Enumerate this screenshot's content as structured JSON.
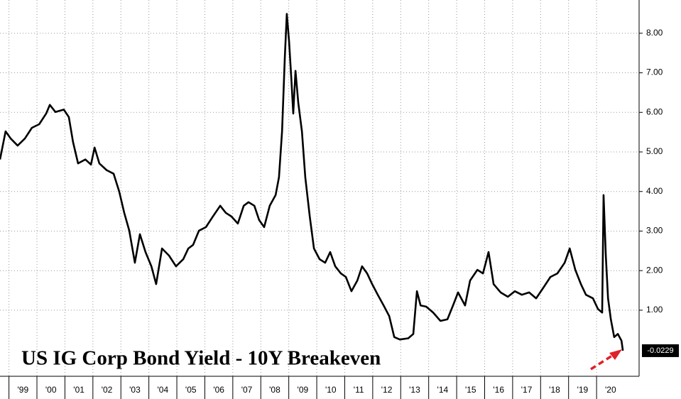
{
  "chart_data": {
    "type": "line",
    "title": "US IG Corp Bond Yield - 10Y Breakeven",
    "color": "#000000",
    "x": [
      1998.68,
      1998.88,
      1999.06,
      1999.31,
      1999.57,
      1999.82,
      2000.08,
      2000.33,
      2000.46,
      2000.66,
      2000.96,
      2001.14,
      2001.29,
      2001.47,
      2001.73,
      2001.93,
      2002.06,
      2002.23,
      2002.49,
      2002.74,
      2002.94,
      2003.12,
      2003.3,
      2003.5,
      2003.68,
      2003.88,
      2004.09,
      2004.26,
      2004.47,
      2004.72,
      2004.97,
      2005.23,
      2005.41,
      2005.58,
      2005.79,
      2006.04,
      2006.29,
      2006.55,
      2006.75,
      2006.95,
      2007.18,
      2007.39,
      2007.56,
      2007.77,
      2007.94,
      2008.12,
      2008.32,
      2008.53,
      2008.65,
      2008.76,
      2008.86,
      2008.93,
      2009.01,
      2009.09,
      2009.16,
      2009.24,
      2009.34,
      2009.47,
      2009.59,
      2009.75,
      2009.9,
      2010.1,
      2010.3,
      2010.48,
      2010.66,
      2010.86,
      2011.04,
      2011.24,
      2011.45,
      2011.62,
      2011.8,
      2011.98,
      2012.18,
      2012.39,
      2012.59,
      2012.77,
      2012.97,
      2013.27,
      2013.45,
      2013.58,
      2013.71,
      2013.91,
      2014.16,
      2014.42,
      2014.67,
      2014.87,
      2015.05,
      2015.3,
      2015.48,
      2015.74,
      2015.94,
      2016.14,
      2016.32,
      2016.57,
      2016.83,
      2017.08,
      2017.33,
      2017.59,
      2017.84,
      2018.1,
      2018.35,
      2018.6,
      2018.86,
      2019.04,
      2019.24,
      2019.44,
      2019.62,
      2019.87,
      2020.05,
      2020.2,
      2020.25,
      2020.33,
      2020.41,
      2020.51,
      2020.63,
      2020.76,
      2020.89,
      2020.94
    ],
    "values": [
      4.81,
      5.52,
      5.34,
      5.16,
      5.34,
      5.61,
      5.7,
      5.97,
      6.19,
      6.01,
      6.07,
      5.88,
      5.25,
      4.71,
      4.81,
      4.68,
      5.11,
      4.71,
      4.54,
      4.45,
      4.0,
      3.46,
      3.01,
      2.2,
      2.92,
      2.47,
      2.11,
      1.66,
      2.56,
      2.38,
      2.11,
      2.29,
      2.56,
      2.65,
      3.01,
      3.1,
      3.37,
      3.64,
      3.46,
      3.37,
      3.19,
      3.64,
      3.73,
      3.64,
      3.28,
      3.1,
      3.64,
      3.91,
      4.36,
      5.52,
      7.41,
      8.49,
      7.8,
      6.87,
      5.97,
      7.05,
      6.24,
      5.52,
      4.36,
      3.37,
      2.56,
      2.29,
      2.2,
      2.47,
      2.11,
      1.93,
      1.84,
      1.48,
      1.75,
      2.11,
      1.93,
      1.66,
      1.39,
      1.12,
      0.85,
      0.32,
      0.26,
      0.29,
      0.4,
      1.48,
      1.12,
      1.09,
      0.94,
      0.73,
      0.77,
      1.12,
      1.45,
      1.12,
      1.75,
      2.02,
      1.93,
      2.47,
      1.66,
      1.45,
      1.34,
      1.48,
      1.39,
      1.45,
      1.3,
      1.57,
      1.84,
      1.93,
      2.2,
      2.56,
      2.02,
      1.66,
      1.39,
      1.3,
      1.03,
      0.94,
      3.91,
      2.38,
      1.3,
      0.77,
      0.32,
      0.4,
      0.23,
      -0.0229
    ],
    "xlim": [
      1998.68,
      2021.52
    ],
    "xticks": [
      {
        "value": 1999,
        "label": "'99"
      },
      {
        "value": 2000,
        "label": "'00"
      },
      {
        "value": 2001,
        "label": "'01"
      },
      {
        "value": 2002,
        "label": "'02"
      },
      {
        "value": 2003,
        "label": "'03"
      },
      {
        "value": 2004,
        "label": "'04"
      },
      {
        "value": 2005,
        "label": "'05"
      },
      {
        "value": 2006,
        "label": "'06"
      },
      {
        "value": 2007,
        "label": "'07"
      },
      {
        "value": 2008,
        "label": "'08"
      },
      {
        "value": 2009,
        "label": "'09"
      },
      {
        "value": 2010,
        "label": "'10"
      },
      {
        "value": 2011,
        "label": "'11"
      },
      {
        "value": 2012,
        "label": "'12"
      },
      {
        "value": 2013,
        "label": "'13"
      },
      {
        "value": 2014,
        "label": "'14"
      },
      {
        "value": 2015,
        "label": "'15"
      },
      {
        "value": 2016,
        "label": "'16"
      },
      {
        "value": 2017,
        "label": "'17"
      },
      {
        "value": 2018,
        "label": "'18"
      },
      {
        "value": 2019,
        "label": "'19"
      },
      {
        "value": 2020,
        "label": "'20"
      }
    ],
    "ylim": [
      -0.67,
      8.84
    ],
    "yticks": [
      {
        "value": 1,
        "label": "1.00"
      },
      {
        "value": 2,
        "label": "2.00"
      },
      {
        "value": 3,
        "label": "3.00"
      },
      {
        "value": 4,
        "label": "4.00"
      },
      {
        "value": 5,
        "label": "5.00"
      },
      {
        "value": 6,
        "label": "6.00"
      },
      {
        "value": 7,
        "label": "7.00"
      },
      {
        "value": 8,
        "label": "8.00"
      }
    ],
    "grid": true
  }
}
